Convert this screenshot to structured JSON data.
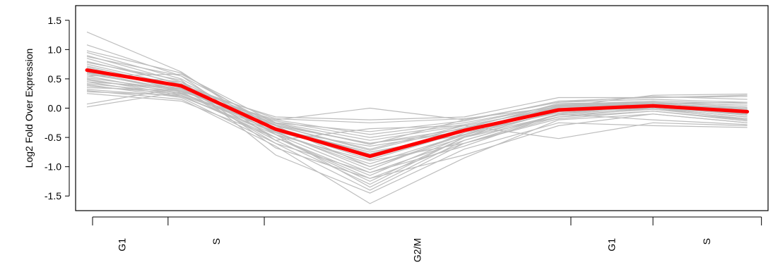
{
  "chart_data": {
    "type": "line",
    "title": "",
    "xlabel": "",
    "ylabel": "Log2 Fold Over Expression",
    "ylim": [
      -1.75,
      1.75
    ],
    "y_ticks": [
      -1.5,
      -1.0,
      -0.5,
      0.0,
      0.5,
      1.0,
      1.5
    ],
    "y_tick_labels": [
      "-1.5",
      "-1.0",
      "-0.5",
      "0.0",
      "0.5",
      "1.0",
      "1.5"
    ],
    "x": [
      1,
      2,
      3,
      4,
      5,
      6,
      7,
      8
    ],
    "xlim": [
      0.88,
      8.22
    ],
    "phase_boundaries": [
      0.88,
      1.86,
      2.88,
      6.13,
      7.0,
      8.15
    ],
    "phase_labels": [
      {
        "label": "G1",
        "x": 1.37
      },
      {
        "label": "S",
        "x": 2.37
      },
      {
        "label": "G2/M",
        "x": 4.5
      },
      {
        "label": "G1",
        "x": 6.56
      },
      {
        "label": "S",
        "x": 7.57
      }
    ],
    "grid": false,
    "legend": "none",
    "colors": {
      "individual": "#bdbdbd",
      "mean": "#ff0000"
    },
    "series": [
      {
        "values": [
          1.3,
          0.62,
          -0.45,
          -0.9,
          -0.6,
          -0.1,
          0.05,
          0.0
        ]
      },
      {
        "values": [
          1.08,
          0.55,
          -0.3,
          -0.6,
          -0.4,
          -0.05,
          0.1,
          -0.05
        ]
      },
      {
        "values": [
          0.98,
          0.6,
          -0.35,
          -0.75,
          -0.45,
          0.0,
          0.08,
          -0.1
        ]
      },
      {
        "values": [
          0.95,
          0.5,
          -0.4,
          -0.8,
          -0.35,
          -0.02,
          0.05,
          0.0
        ]
      },
      {
        "values": [
          0.9,
          0.45,
          -0.3,
          -1.0,
          -0.5,
          0.05,
          0.1,
          -0.05
        ]
      },
      {
        "values": [
          0.85,
          0.4,
          -0.25,
          -0.55,
          -0.3,
          0.0,
          0.0,
          -0.1
        ]
      },
      {
        "values": [
          0.8,
          0.42,
          -0.45,
          -1.1,
          -0.55,
          -0.1,
          0.05,
          -0.08
        ]
      },
      {
        "values": [
          0.75,
          0.38,
          -0.38,
          -0.65,
          -0.4,
          -0.05,
          0.1,
          0.02
        ]
      },
      {
        "values": [
          0.72,
          0.35,
          -0.5,
          -1.2,
          -0.6,
          -0.15,
          0.0,
          -0.15
        ]
      },
      {
        "values": [
          0.7,
          0.3,
          -0.2,
          -0.45,
          -0.25,
          0.05,
          0.08,
          0.1
        ]
      },
      {
        "values": [
          0.68,
          0.33,
          -0.35,
          -0.85,
          -0.4,
          -0.02,
          0.02,
          -0.05
        ]
      },
      {
        "values": [
          0.65,
          0.36,
          -0.42,
          -0.95,
          -0.45,
          0.02,
          0.06,
          -0.02
        ]
      },
      {
        "values": [
          0.62,
          0.3,
          -0.3,
          -0.7,
          -0.3,
          0.0,
          0.03,
          -0.12
        ]
      },
      {
        "values": [
          0.6,
          0.28,
          -0.55,
          -1.3,
          -0.5,
          -0.05,
          0.0,
          -0.2
        ]
      },
      {
        "values": [
          0.58,
          0.32,
          -0.28,
          -0.6,
          -0.35,
          0.08,
          0.1,
          0.05
        ]
      },
      {
        "values": [
          0.55,
          0.25,
          -0.4,
          -1.05,
          -0.42,
          -0.08,
          0.04,
          -0.1
        ]
      },
      {
        "values": [
          0.52,
          0.3,
          -0.33,
          -0.78,
          -0.38,
          0.03,
          0.07,
          -0.04
        ]
      },
      {
        "values": [
          0.5,
          0.22,
          -0.5,
          -1.15,
          -0.48,
          -0.12,
          -0.02,
          -0.18
        ]
      },
      {
        "values": [
          0.48,
          0.28,
          -0.22,
          -0.5,
          -0.28,
          0.06,
          0.12,
          0.08
        ]
      },
      {
        "values": [
          0.45,
          0.2,
          -0.45,
          -1.35,
          -0.55,
          -0.1,
          0.0,
          -0.15
        ]
      },
      {
        "values": [
          0.42,
          0.26,
          -0.36,
          -0.88,
          -0.4,
          0.0,
          0.05,
          -0.06
        ]
      },
      {
        "values": [
          0.4,
          0.18,
          -0.6,
          -1.4,
          -0.6,
          -0.18,
          -0.05,
          -0.22
        ]
      },
      {
        "values": [
          0.38,
          0.24,
          -0.3,
          -0.72,
          -0.33,
          0.04,
          0.08,
          0.0
        ]
      },
      {
        "values": [
          0.35,
          0.3,
          -0.26,
          -0.62,
          -0.2,
          0.1,
          0.15,
          0.1
        ]
      },
      {
        "values": [
          0.32,
          0.2,
          -0.42,
          -1.0,
          -0.46,
          -0.06,
          0.02,
          -0.12
        ]
      },
      {
        "values": [
          0.3,
          0.15,
          -0.65,
          -1.63,
          -0.85,
          -0.2,
          -0.1,
          -0.25
        ]
      },
      {
        "values": [
          0.28,
          0.22,
          -0.34,
          -0.82,
          -0.36,
          0.0,
          0.06,
          -0.03
        ]
      },
      {
        "values": [
          0.25,
          0.12,
          -0.5,
          -1.25,
          -0.5,
          -0.15,
          -0.05,
          -0.2
        ]
      },
      {
        "values": [
          0.07,
          0.35,
          -0.15,
          -0.2,
          -0.15,
          0.18,
          0.18,
          0.22
        ]
      },
      {
        "values": [
          0.02,
          0.28,
          -0.2,
          0.0,
          -0.2,
          0.1,
          0.2,
          0.15
        ]
      },
      {
        "values": [
          0.88,
          0.55,
          -0.55,
          -0.35,
          -0.3,
          -0.52,
          -0.25,
          -0.3
        ]
      },
      {
        "values": [
          0.78,
          0.48,
          -0.8,
          -1.45,
          -0.7,
          -0.25,
          -0.3,
          -0.33
        ]
      },
      {
        "values": [
          0.6,
          0.45,
          -0.68,
          -1.2,
          -0.8,
          -0.3,
          -0.1,
          -0.25
        ]
      },
      {
        "values": [
          0.66,
          0.4,
          -0.18,
          -0.25,
          -0.18,
          0.02,
          0.22,
          0.24
        ]
      },
      {
        "values": [
          0.55,
          0.58,
          -0.25,
          -0.4,
          -0.22,
          0.12,
          0.18,
          0.2
        ]
      },
      {
        "values": [
          0.45,
          0.34,
          -0.6,
          -1.1,
          -0.65,
          -0.1,
          -0.2,
          -0.28
        ]
      }
    ],
    "mean": {
      "values": [
        0.65,
        0.38,
        -0.36,
        -0.82,
        -0.38,
        -0.03,
        0.04,
        -0.06
      ]
    }
  }
}
